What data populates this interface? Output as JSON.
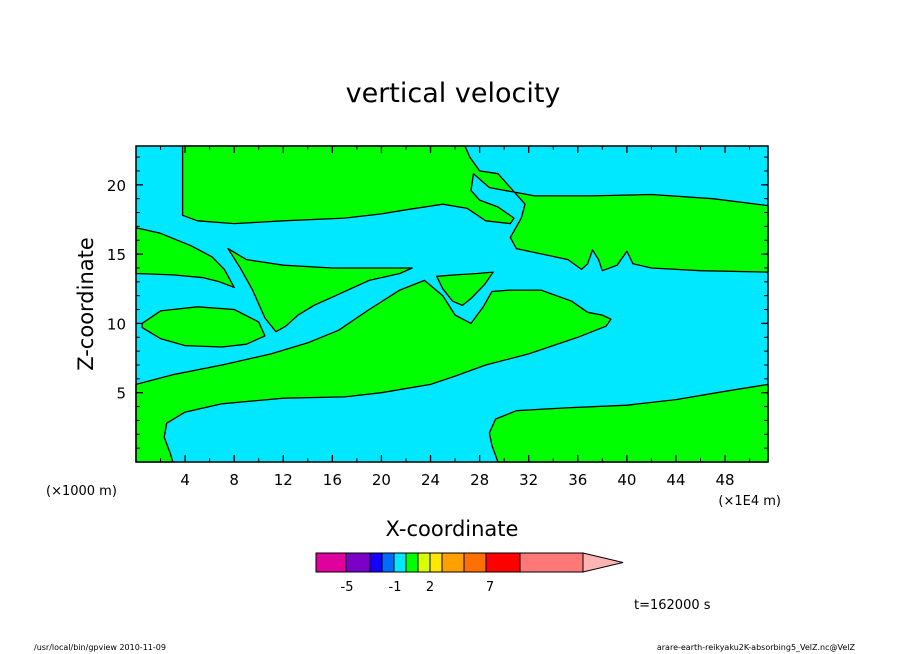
{
  "chart_data": {
    "type": "contour",
    "title": "vertical velocity",
    "xlabel": "X-coordinate",
    "ylabel": "Z-coordinate",
    "x_unit_label": "(×1000 m)",
    "x_scale_label": "(×1E4 m)",
    "xlim": [
      0,
      51.5
    ],
    "ylim": [
      0,
      22.8
    ],
    "x_ticks": [
      4,
      8,
      12,
      16,
      20,
      24,
      28,
      32,
      36,
      40,
      44,
      48
    ],
    "y_ticks": [
      5,
      10,
      15,
      20
    ],
    "time_label": "t=162000 s",
    "background_value_color": "#00e8ff",
    "contour_fill_color": "#00ff00",
    "regions": [
      {
        "name": "upper band",
        "points": [
          [
            3.8,
            22.8
          ],
          [
            26.8,
            22.8
          ],
          [
            27.2,
            22
          ],
          [
            28,
            21
          ],
          [
            29.5,
            20.8
          ],
          [
            30.8,
            19.5
          ],
          [
            31.7,
            18.6
          ],
          [
            31.4,
            17.6
          ],
          [
            30.5,
            16.2
          ],
          [
            31,
            15.4
          ],
          [
            35.2,
            14.6
          ],
          [
            36.3,
            13.9
          ],
          [
            36.8,
            14.3
          ],
          [
            37.2,
            15.3
          ],
          [
            37.7,
            14.6
          ],
          [
            38,
            13.8
          ],
          [
            39.2,
            14.2
          ],
          [
            40,
            15.2
          ],
          [
            40.5,
            14.3
          ],
          [
            42,
            14
          ],
          [
            46,
            13.8
          ],
          [
            51.5,
            13.7
          ],
          [
            51.5,
            18.5
          ],
          [
            47,
            19
          ],
          [
            42,
            19.3
          ],
          [
            37,
            19.2
          ],
          [
            32.5,
            19.2
          ],
          [
            28.8,
            19.8
          ],
          [
            27.5,
            20.8
          ],
          [
            27.3,
            19.6
          ],
          [
            28,
            18.9
          ],
          [
            29.5,
            18.4
          ],
          [
            30.8,
            17.6
          ],
          [
            30.5,
            17.2
          ],
          [
            28.5,
            17.4
          ],
          [
            27,
            18.3
          ],
          [
            25,
            18.6
          ],
          [
            22,
            18.2
          ],
          [
            20,
            17.9
          ],
          [
            17,
            17.6
          ],
          [
            12,
            17.4
          ],
          [
            8,
            17.2
          ],
          [
            5,
            17.4
          ],
          [
            3.8,
            17.8
          ]
        ]
      },
      {
        "name": "left tongue",
        "points": [
          [
            0,
            16.9
          ],
          [
            2,
            16.5
          ],
          [
            4.5,
            15.6
          ],
          [
            6.2,
            14.8
          ],
          [
            7.2,
            13.9
          ],
          [
            8,
            12.6
          ],
          [
            6.8,
            13
          ],
          [
            5.5,
            13.3
          ],
          [
            3,
            13.5
          ],
          [
            0,
            13.6
          ]
        ]
      },
      {
        "name": "wedge",
        "points": [
          [
            7.5,
            15.4
          ],
          [
            9,
            14.6
          ],
          [
            12,
            14.2
          ],
          [
            16,
            14
          ],
          [
            20,
            14
          ],
          [
            22.5,
            14
          ],
          [
            21.5,
            13.6
          ],
          [
            19,
            13.1
          ],
          [
            16.5,
            12.1
          ],
          [
            14.5,
            11.3
          ],
          [
            13.2,
            10.6
          ],
          [
            12.2,
            9.8
          ],
          [
            11.4,
            9.4
          ],
          [
            10.5,
            10.4
          ],
          [
            9.5,
            12.4
          ],
          [
            8.5,
            14
          ]
        ]
      },
      {
        "name": "left lens",
        "points": [
          [
            0.5,
            10
          ],
          [
            2,
            10.9
          ],
          [
            5,
            11.2
          ],
          [
            8,
            11
          ],
          [
            10,
            10.1
          ],
          [
            10.5,
            9.1
          ],
          [
            9,
            8.5
          ],
          [
            7,
            8.3
          ],
          [
            4,
            8.4
          ],
          [
            2,
            8.9
          ],
          [
            0.5,
            9.7
          ]
        ]
      },
      {
        "name": "small lens",
        "points": [
          [
            24.5,
            13.4
          ],
          [
            26,
            13.5
          ],
          [
            27.8,
            13.6
          ],
          [
            29.1,
            13.7
          ],
          [
            28.4,
            12.8
          ],
          [
            27.3,
            11.8
          ],
          [
            26.6,
            11.3
          ],
          [
            25.8,
            11.6
          ],
          [
            25,
            12.5
          ]
        ]
      },
      {
        "name": "middle band",
        "points": [
          [
            0,
            5.6
          ],
          [
            3,
            6.3
          ],
          [
            7,
            7
          ],
          [
            11,
            7.8
          ],
          [
            14,
            8.6
          ],
          [
            16.5,
            9.5
          ],
          [
            19,
            11
          ],
          [
            21.5,
            12.4
          ],
          [
            23.5,
            13.1
          ],
          [
            25,
            12
          ],
          [
            26,
            10.6
          ],
          [
            27.3,
            10
          ],
          [
            28.3,
            11.2
          ],
          [
            29,
            12.3
          ],
          [
            30.5,
            12.4
          ],
          [
            33,
            12.4
          ],
          [
            35.5,
            11.6
          ],
          [
            36.8,
            10.8
          ],
          [
            38,
            10.6
          ],
          [
            38.7,
            10.3
          ],
          [
            38.3,
            9.8
          ],
          [
            36,
            9
          ],
          [
            32,
            7.8
          ],
          [
            28.5,
            7
          ],
          [
            26,
            6.2
          ],
          [
            24,
            5.6
          ],
          [
            20,
            5
          ],
          [
            17,
            4.7
          ],
          [
            12,
            4.6
          ],
          [
            7,
            4.2
          ],
          [
            4,
            3.6
          ],
          [
            2.5,
            2.8
          ],
          [
            2.3,
            1.8
          ],
          [
            2.8,
            0.6
          ],
          [
            3,
            0
          ],
          [
            0,
            0
          ]
        ]
      },
      {
        "name": "right lower",
        "points": [
          [
            29.5,
            0
          ],
          [
            51.5,
            0
          ],
          [
            51.5,
            5.6
          ],
          [
            48,
            5.1
          ],
          [
            44,
            4.5
          ],
          [
            40,
            4.1
          ],
          [
            35,
            3.9
          ],
          [
            31,
            3.7
          ],
          [
            29.3,
            3.1
          ],
          [
            28.8,
            2.1
          ],
          [
            29,
            1.2
          ]
        ]
      }
    ],
    "colorbar": {
      "colors": [
        "#e0009e",
        "#7b00c8",
        "#1800ff",
        "#006cff",
        "#00e8ff",
        "#00ff00",
        "#d8ff00",
        "#ffe800",
        "#ffa000",
        "#ff7000",
        "#ff0000",
        "#ff7878",
        "#ffb4b4"
      ],
      "labels": [
        "-5",
        "-1",
        "2",
        "7"
      ]
    }
  },
  "footer": {
    "left": "/usr/local/bin/gpview  2010-11-09",
    "right": "arare-earth-reikyaku2K-absorbing5_VelZ.nc@VelZ"
  }
}
